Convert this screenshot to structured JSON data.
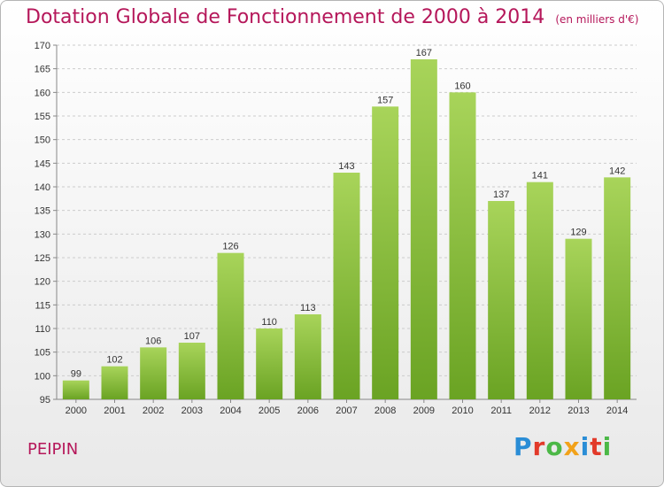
{
  "header": {
    "title": "Dotation Globale de Fonctionnement de 2000 à 2014",
    "subtitle": "(en milliers d'€)"
  },
  "footer": {
    "commune": "PEIPIN",
    "logo_text": "Proxiti",
    "logo_colors": [
      "#2a8dd6",
      "#e23a2a",
      "#4cb847",
      "#f2a21a",
      "#2a8dd6",
      "#e23a2a",
      "#4cb847"
    ]
  },
  "colors": {
    "title": "#b5175a",
    "bar_light": "#a8d45a",
    "bar_dark": "#6aa323",
    "grid": "#cccccc",
    "axis": "#888888"
  },
  "chart_data": {
    "type": "bar",
    "title": "Dotation Globale de Fonctionnement de 2000 à 2014",
    "subtitle": "(en milliers d'€)",
    "xlabel": "",
    "ylabel": "",
    "categories": [
      "2000",
      "2001",
      "2002",
      "2003",
      "2004",
      "2005",
      "2006",
      "2007",
      "2008",
      "2009",
      "2010",
      "2011",
      "2012",
      "2013",
      "2014"
    ],
    "values": [
      99,
      102,
      106,
      107,
      126,
      110,
      113,
      143,
      157,
      167,
      160,
      137,
      141,
      129,
      142
    ],
    "ylim": [
      95,
      170
    ],
    "yticks": [
      95,
      100,
      105,
      110,
      115,
      120,
      125,
      130,
      135,
      140,
      145,
      150,
      155,
      160,
      165,
      170
    ],
    "grid": true,
    "grid_style": "dashed-horizontal",
    "legend": "none"
  }
}
